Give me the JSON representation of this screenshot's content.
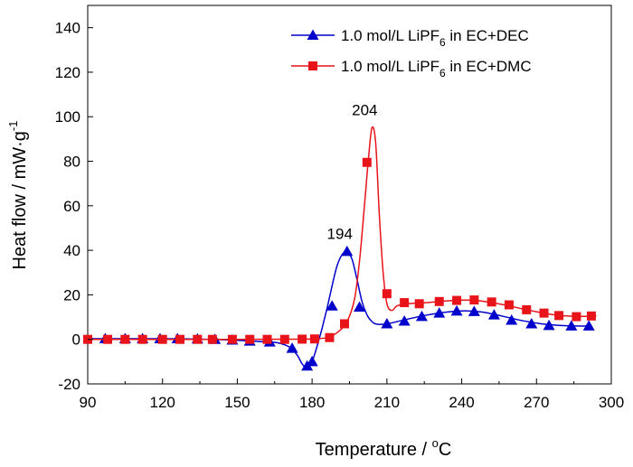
{
  "chart_data": {
    "type": "line",
    "xlabel": {
      "main": "Temperature / ",
      "sup": "o",
      "tail": "C"
    },
    "ylabel": {
      "main": "Heat flow / mW·g",
      "sup": "-1"
    },
    "xlim": [
      90,
      300
    ],
    "ylim": [
      -20,
      150
    ],
    "x_ticks": [
      90,
      120,
      150,
      180,
      210,
      240,
      270,
      300
    ],
    "y_ticks": [
      -20,
      0,
      20,
      40,
      60,
      80,
      100,
      120,
      140
    ],
    "grid": false,
    "legend_position": "top-right",
    "series": [
      {
        "name_parts": {
          "pre": "1.0 mol/L LiPF",
          "sub": "6",
          "post": " in EC+DEC"
        },
        "color": "#0000cc",
        "marker": "triangle",
        "line": [
          [
            90,
            0.3
          ],
          [
            100,
            0.3
          ],
          [
            110,
            0.3
          ],
          [
            120,
            0.3
          ],
          [
            130,
            0.2
          ],
          [
            140,
            0
          ],
          [
            150,
            -0.4
          ],
          [
            160,
            -1
          ],
          [
            166,
            -1.5
          ],
          [
            171,
            -3.5
          ],
          [
            174,
            -7
          ],
          [
            176,
            -11
          ],
          [
            178,
            -13
          ],
          [
            180,
            -10
          ],
          [
            182,
            -3
          ],
          [
            184,
            5
          ],
          [
            186,
            14
          ],
          [
            188,
            24
          ],
          [
            190,
            33
          ],
          [
            192,
            38
          ],
          [
            194,
            39.5
          ],
          [
            196,
            36
          ],
          [
            198,
            27
          ],
          [
            200,
            17
          ],
          [
            202,
            11
          ],
          [
            204,
            8
          ],
          [
            206,
            6.8
          ],
          [
            210,
            7
          ],
          [
            216,
            8.5
          ],
          [
            224,
            10.5
          ],
          [
            232,
            12
          ],
          [
            240,
            12.8
          ],
          [
            248,
            12.3
          ],
          [
            256,
            10.5
          ],
          [
            264,
            8.5
          ],
          [
            272,
            7
          ],
          [
            280,
            6.2
          ],
          [
            286,
            6
          ],
          [
            292,
            6
          ]
        ],
        "markers": [
          [
            97,
            0.3
          ],
          [
            105,
            0.3
          ],
          [
            112,
            0.3
          ],
          [
            119,
            0.3
          ],
          [
            126,
            0.3
          ],
          [
            134,
            0.2
          ],
          [
            141,
            0
          ],
          [
            148,
            -0.3
          ],
          [
            155,
            -0.8
          ],
          [
            163,
            -1.2
          ],
          [
            172,
            -4
          ],
          [
            178,
            -12
          ],
          [
            180,
            -10
          ],
          [
            188,
            15
          ],
          [
            194,
            39.5
          ],
          [
            199,
            14.5
          ],
          [
            210,
            7
          ],
          [
            217,
            8.2
          ],
          [
            224,
            10.3
          ],
          [
            231,
            11.8
          ],
          [
            238,
            12.7
          ],
          [
            245,
            12.5
          ],
          [
            253,
            11
          ],
          [
            260,
            8.6
          ],
          [
            268,
            7
          ],
          [
            275,
            6.2
          ],
          [
            284,
            6
          ],
          [
            291,
            6
          ]
        ]
      },
      {
        "name_parts": {
          "pre": "1.0 mol/L LiPF",
          "sub": "6",
          "post": " in EC+DMC"
        },
        "color": "#e8141a",
        "marker": "square",
        "line": [
          [
            90,
            0
          ],
          [
            110,
            0
          ],
          [
            130,
            0
          ],
          [
            150,
            0
          ],
          [
            170,
            0.1
          ],
          [
            180,
            0.2
          ],
          [
            186,
            0.8
          ],
          [
            190,
            3
          ],
          [
            194,
            8
          ],
          [
            197,
            18
          ],
          [
            199,
            35
          ],
          [
            201,
            60
          ],
          [
            202.5,
            80
          ],
          [
            204,
            95
          ],
          [
            205.5,
            88
          ],
          [
            207,
            55
          ],
          [
            208.5,
            30
          ],
          [
            210,
            16
          ],
          [
            212,
            13
          ],
          [
            214,
            15
          ],
          [
            218,
            16
          ],
          [
            226,
            16.5
          ],
          [
            234,
            17.3
          ],
          [
            240,
            17.6
          ],
          [
            246,
            17.5
          ],
          [
            252,
            16.5
          ],
          [
            258,
            15.3
          ],
          [
            264,
            13.8
          ],
          [
            270,
            12.4
          ],
          [
            276,
            11.2
          ],
          [
            282,
            10.5
          ],
          [
            290,
            10.3
          ],
          [
            294,
            10.5
          ]
        ],
        "markers": [
          [
            90,
            0
          ],
          [
            98,
            0
          ],
          [
            105,
            0
          ],
          [
            112,
            0
          ],
          [
            120,
            0
          ],
          [
            127,
            0
          ],
          [
            134,
            0
          ],
          [
            140,
            0
          ],
          [
            148,
            0
          ],
          [
            155,
            0
          ],
          [
            162,
            0
          ],
          [
            169,
            0
          ],
          [
            176,
            0.1
          ],
          [
            181,
            0.2
          ],
          [
            187,
            0.8
          ],
          [
            193,
            7
          ],
          [
            202,
            79.5
          ],
          [
            210,
            20.5
          ],
          [
            217,
            16.5
          ],
          [
            223,
            16
          ],
          [
            231,
            17
          ],
          [
            238,
            17.5
          ],
          [
            245,
            17.7
          ],
          [
            252,
            16.8
          ],
          [
            259,
            15.5
          ],
          [
            266,
            13.3
          ],
          [
            273,
            11.8
          ],
          [
            279,
            10.7
          ],
          [
            286,
            10.2
          ],
          [
            292,
            10.5
          ]
        ]
      }
    ],
    "annotations": [
      {
        "text": "194",
        "x": 194,
        "y": 39.5
      },
      {
        "text": "204",
        "x": 204,
        "y": 95
      }
    ]
  }
}
